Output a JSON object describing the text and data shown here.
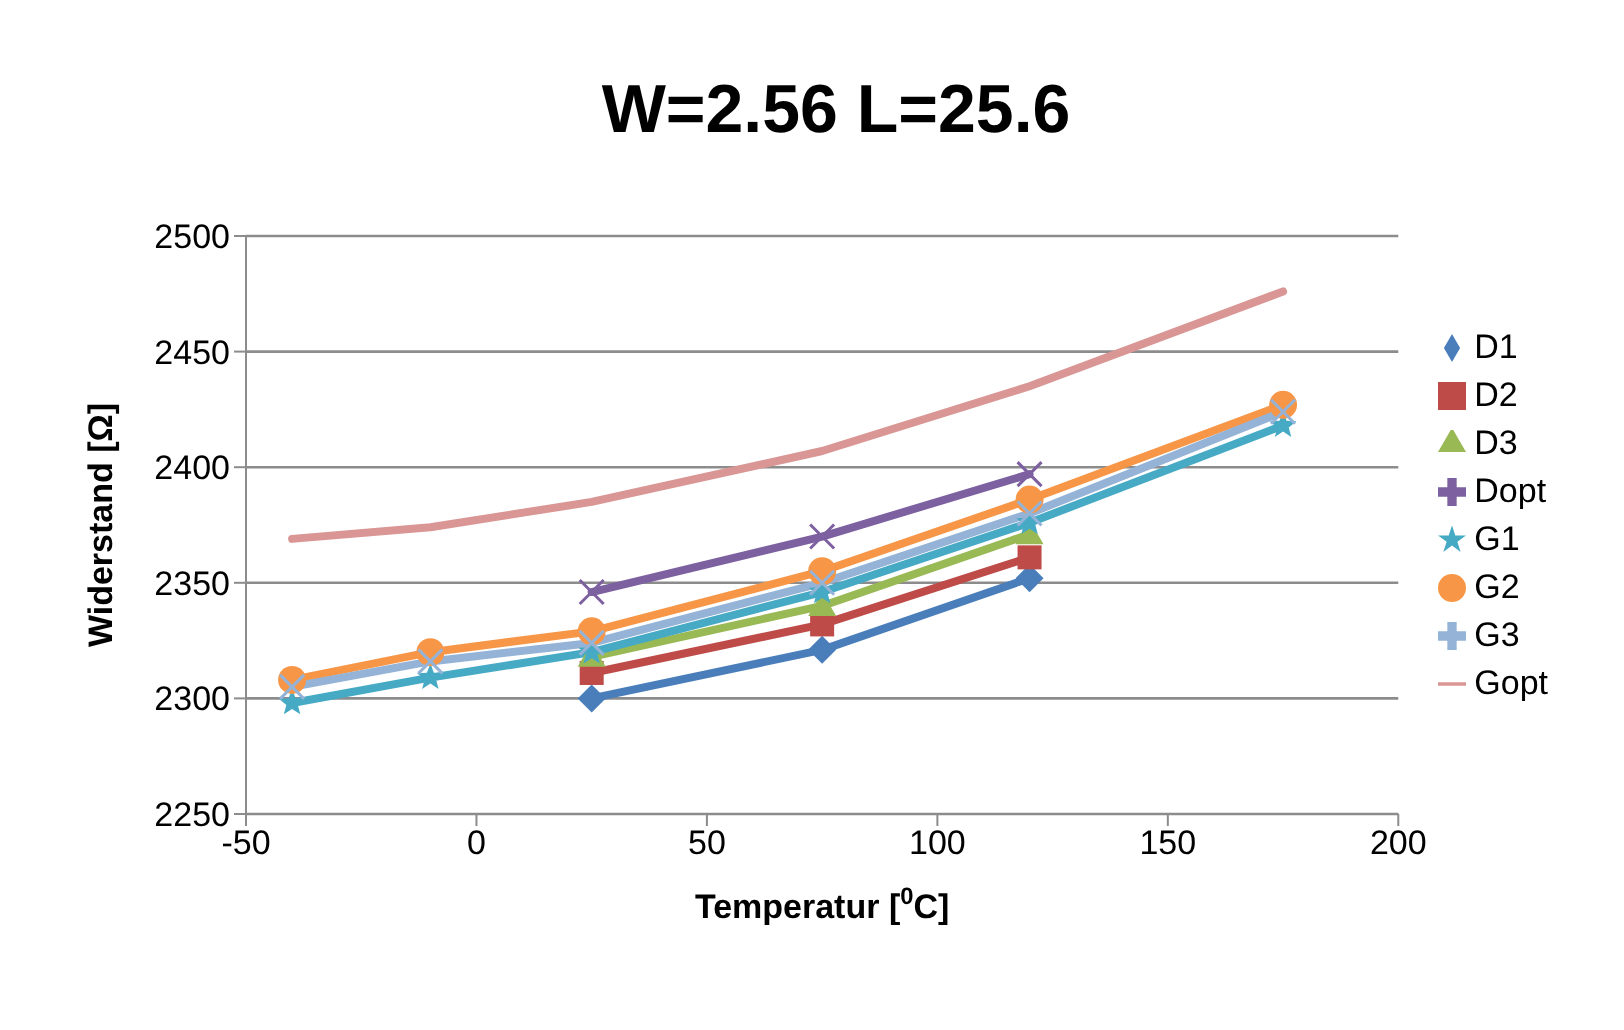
{
  "chart_data": {
    "type": "line",
    "title": "W=2.56 L=25.6",
    "xlabel": "Temperatur [$^{0}$C]",
    "ylabel": "Widerstand [Ω]",
    "xlim": [
      -50,
      200
    ],
    "xticks": [
      -50,
      0,
      50,
      100,
      150,
      200
    ],
    "ylim": [
      2250,
      2500
    ],
    "yticks": [
      2250,
      2300,
      2350,
      2400,
      2450,
      2500
    ],
    "grid": "y",
    "legend": "right",
    "series": [
      {
        "name": "D1",
        "color": "#4a7ebb",
        "marker": "diamond",
        "x": [
          25,
          75,
          120
        ],
        "values": [
          2300,
          2321,
          2352
        ]
      },
      {
        "name": "D2",
        "color": "#be4b48",
        "marker": "square",
        "x": [
          25,
          75,
          120
        ],
        "values": [
          2311,
          2332,
          2361
        ]
      },
      {
        "name": "D3",
        "color": "#98b954",
        "marker": "triangle",
        "x": [
          25,
          75,
          120
        ],
        "values": [
          2318,
          2340,
          2371
        ]
      },
      {
        "name": "Dopt",
        "color": "#7d60a0",
        "marker": "cross",
        "x": [
          25,
          75,
          120
        ],
        "values": [
          2346,
          2370,
          2397
        ]
      },
      {
        "name": "G1",
        "color": "#46aac5",
        "marker": "star",
        "x": [
          -40,
          -10,
          25,
          75,
          120,
          175
        ],
        "values": [
          2298,
          2309,
          2320,
          2346,
          2376,
          2418
        ]
      },
      {
        "name": "G2",
        "color": "#f79646",
        "marker": "circle",
        "x": [
          -40,
          -10,
          25,
          75,
          120,
          175
        ],
        "values": [
          2308,
          2320,
          2329,
          2355,
          2386,
          2427
        ]
      },
      {
        "name": "G3",
        "color": "#95b3d7",
        "marker": "cross",
        "x": [
          -40,
          -10,
          25,
          75,
          120,
          175
        ],
        "values": [
          2305,
          2316,
          2324,
          2350,
          2380,
          2424
        ]
      },
      {
        "name": "Gopt",
        "color": "#d99694",
        "marker": "none",
        "x": [
          -40,
          -10,
          25,
          75,
          120,
          175
        ],
        "values": [
          2369,
          2374,
          2385,
          2407,
          2435,
          2476
        ]
      }
    ]
  }
}
